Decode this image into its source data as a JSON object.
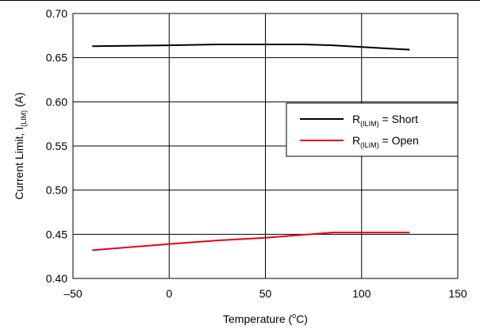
{
  "chart_data": {
    "type": "line",
    "xlabel": {
      "main": "Temperature (",
      "sup": "o",
      "tail": "C)"
    },
    "ylabel": {
      "main": "Current Limit, I",
      "sub": "(LIM)",
      "tail": " (A)"
    },
    "xlim": [
      -50,
      150
    ],
    "ylim": [
      0.4,
      0.7
    ],
    "x_ticks": [
      -50,
      0,
      50,
      100,
      150
    ],
    "x_tick_labels": [
      "–50",
      "0",
      "50",
      "100",
      "150"
    ],
    "y_ticks": [
      0.4,
      0.45,
      0.5,
      0.55,
      0.6,
      0.65,
      0.7
    ],
    "y_tick_labels": [
      "0.40",
      "0.45",
      "0.50",
      "0.55",
      "0.60",
      "0.65",
      "0.70"
    ],
    "grid": true,
    "legend_position": "right",
    "series": [
      {
        "name": {
          "main": "R",
          "sub": "(ILIM)",
          "tail": " = Short"
        },
        "color": "#000000",
        "points": [
          [
            -40,
            0.663
          ],
          [
            0,
            0.664
          ],
          [
            25,
            0.665
          ],
          [
            50,
            0.665
          ],
          [
            70,
            0.665
          ],
          [
            85,
            0.664
          ],
          [
            100,
            0.662
          ],
          [
            125,
            0.659
          ]
        ]
      },
      {
        "name": {
          "main": "R",
          "sub": "(ILIM)",
          "tail": " = Open"
        },
        "color": "#e8001c",
        "points": [
          [
            -40,
            0.432
          ],
          [
            0,
            0.439
          ],
          [
            25,
            0.443
          ],
          [
            50,
            0.446
          ],
          [
            85,
            0.452
          ],
          [
            100,
            0.452
          ],
          [
            125,
            0.452
          ]
        ]
      }
    ]
  }
}
